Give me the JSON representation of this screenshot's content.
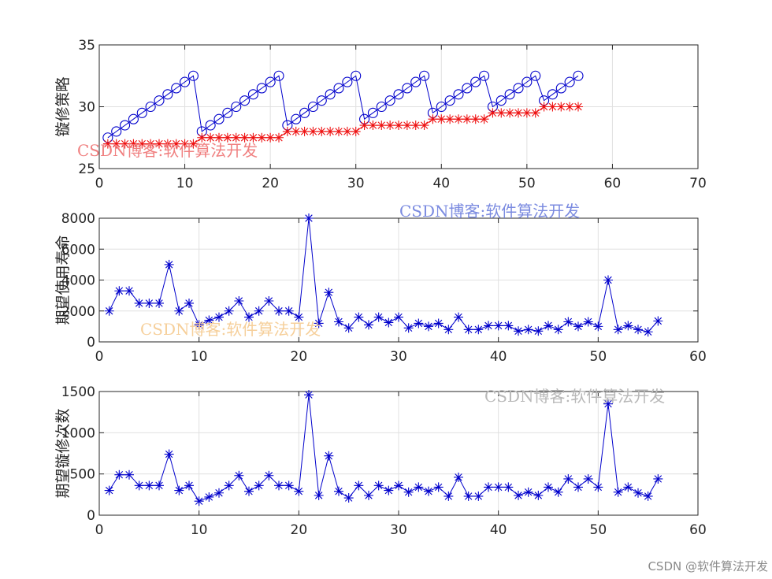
{
  "colors": {
    "blue": "#0000CC",
    "red": "#EE1111",
    "grid": "#E0E0E0",
    "axis": "#262626",
    "wm_red": "#F08080",
    "wm_blue": "#7B8BE0",
    "wm_orange": "#F6CF9A",
    "wm_gray": "#B8B8B8"
  },
  "chart_data": [
    {
      "type": "line",
      "ylabel": "镟修策略",
      "xlim": [
        0,
        70
      ],
      "ylim": [
        25,
        35
      ],
      "xticks": [
        0,
        10,
        20,
        30,
        40,
        50,
        60,
        70
      ],
      "yticks": [
        25,
        30,
        35
      ],
      "grid": true,
      "series": [
        {
          "name": "blue-circle",
          "color": "blue",
          "marker": "circle",
          "x": [
            1,
            2,
            3,
            4,
            5,
            6,
            7,
            8,
            9,
            10,
            11,
            12,
            13,
            14,
            15,
            16,
            17,
            18,
            19,
            20,
            21,
            22,
            23,
            24,
            25,
            26,
            27,
            28,
            29,
            30,
            31,
            32,
            33,
            34,
            35,
            36,
            37,
            38,
            39,
            40,
            41,
            42,
            43,
            44,
            45,
            46,
            47,
            48,
            49,
            50,
            51,
            52,
            53,
            54,
            55,
            56
          ],
          "y": [
            27.5,
            28.0,
            28.5,
            29.0,
            29.5,
            30.0,
            30.5,
            31.0,
            31.5,
            32.0,
            32.5,
            28.0,
            28.5,
            29.0,
            29.5,
            30.0,
            30.5,
            31.0,
            31.5,
            32.0,
            32.5,
            28.5,
            29.0,
            29.5,
            30.0,
            30.5,
            31.0,
            31.5,
            32.0,
            32.5,
            29.0,
            29.5,
            30.0,
            30.5,
            31.0,
            31.5,
            32.0,
            32.5,
            29.5,
            30.0,
            30.5,
            31.0,
            31.5,
            32.0,
            32.5,
            30.0,
            30.5,
            31.0,
            31.5,
            32.0,
            32.5,
            30.5,
            31.0,
            31.5,
            32.0,
            32.5
          ]
        },
        {
          "name": "red-star",
          "color": "red",
          "marker": "star",
          "x": [
            1,
            2,
            3,
            4,
            5,
            6,
            7,
            8,
            9,
            10,
            11,
            12,
            13,
            14,
            15,
            16,
            17,
            18,
            19,
            20,
            21,
            22,
            23,
            24,
            25,
            26,
            27,
            28,
            29,
            30,
            31,
            32,
            33,
            34,
            35,
            36,
            37,
            38,
            39,
            40,
            41,
            42,
            43,
            44,
            45,
            46,
            47,
            48,
            49,
            50,
            51,
            52,
            53,
            54,
            55,
            56
          ],
          "y": [
            27.0,
            27.0,
            27.0,
            27.0,
            27.0,
            27.0,
            27.0,
            27.0,
            27.0,
            27.0,
            27.0,
            27.5,
            27.5,
            27.5,
            27.5,
            27.5,
            27.5,
            27.5,
            27.5,
            27.5,
            27.5,
            28.0,
            28.0,
            28.0,
            28.0,
            28.0,
            28.0,
            28.0,
            28.0,
            28.0,
            28.5,
            28.5,
            28.5,
            28.5,
            28.5,
            28.5,
            28.5,
            28.5,
            29.0,
            29.0,
            29.0,
            29.0,
            29.0,
            29.0,
            29.0,
            29.5,
            29.5,
            29.5,
            29.5,
            29.5,
            29.5,
            30.0,
            30.0,
            30.0,
            30.0,
            30.0
          ]
        }
      ]
    },
    {
      "type": "line",
      "ylabel": "期望使用寿命",
      "xlim": [
        0,
        60
      ],
      "ylim": [
        0,
        8000
      ],
      "xticks": [
        0,
        10,
        20,
        30,
        40,
        50,
        60
      ],
      "yticks": [
        0,
        2000,
        4000,
        6000,
        8000
      ],
      "grid": true,
      "series": [
        {
          "name": "blue-star",
          "color": "blue",
          "marker": "star",
          "x": [
            1,
            2,
            3,
            4,
            5,
            6,
            7,
            8,
            9,
            10,
            11,
            12,
            13,
            14,
            15,
            16,
            17,
            18,
            19,
            20,
            21,
            22,
            23,
            24,
            25,
            26,
            27,
            28,
            29,
            30,
            31,
            32,
            33,
            34,
            35,
            36,
            37,
            38,
            39,
            40,
            41,
            42,
            43,
            44,
            45,
            46,
            47,
            48,
            49,
            50,
            51,
            52,
            53,
            54,
            55,
            56
          ],
          "y": [
            2000,
            3300,
            3300,
            2500,
            2500,
            2500,
            5000,
            2000,
            2500,
            1100,
            1400,
            1600,
            2000,
            2650,
            1600,
            2000,
            2650,
            2000,
            2000,
            1600,
            8000,
            1200,
            3200,
            1300,
            900,
            1600,
            1100,
            1600,
            1250,
            1600,
            900,
            1200,
            1000,
            1200,
            800,
            1600,
            800,
            800,
            1050,
            1050,
            1050,
            700,
            800,
            700,
            1050,
            800,
            1300,
            1000,
            1300,
            1000,
            4000,
            800,
            1050,
            800,
            650,
            1350
          ]
        }
      ]
    },
    {
      "type": "line",
      "ylabel": "期望镟修次数",
      "xlim": [
        0,
        60
      ],
      "ylim": [
        0,
        1500
      ],
      "xticks": [
        0,
        10,
        20,
        30,
        40,
        50,
        60
      ],
      "yticks": [
        0,
        500,
        1000,
        1500
      ],
      "grid": true,
      "series": [
        {
          "name": "blue-star",
          "color": "blue",
          "marker": "star",
          "x": [
            1,
            2,
            3,
            4,
            5,
            6,
            7,
            8,
            9,
            10,
            11,
            12,
            13,
            14,
            15,
            16,
            17,
            18,
            19,
            20,
            21,
            22,
            23,
            24,
            25,
            26,
            27,
            28,
            29,
            30,
            31,
            32,
            33,
            34,
            35,
            36,
            37,
            38,
            39,
            40,
            41,
            42,
            43,
            44,
            45,
            46,
            47,
            48,
            49,
            50,
            51,
            52,
            53,
            54,
            55,
            56
          ],
          "y": [
            300,
            490,
            490,
            360,
            360,
            360,
            740,
            300,
            360,
            170,
            220,
            270,
            360,
            480,
            290,
            360,
            480,
            360,
            360,
            290,
            1460,
            240,
            720,
            290,
            210,
            360,
            240,
            360,
            300,
            360,
            280,
            340,
            290,
            340,
            230,
            460,
            230,
            230,
            340,
            340,
            340,
            240,
            280,
            240,
            340,
            280,
            440,
            340,
            440,
            340,
            1350,
            280,
            340,
            270,
            230,
            440
          ]
        }
      ]
    }
  ],
  "watermarks": [
    {
      "text": "CSDN博客:软件算法开发",
      "color": "wm_red"
    },
    {
      "text": "CSDN博客:软件算法开发",
      "color": "wm_blue"
    },
    {
      "text": "CSDN博客:软件算法开发",
      "color": "wm_orange"
    },
    {
      "text": "CSDN博客:软件算法开发",
      "color": "wm_gray"
    }
  ],
  "credit": "CSDN @软件算法开发"
}
